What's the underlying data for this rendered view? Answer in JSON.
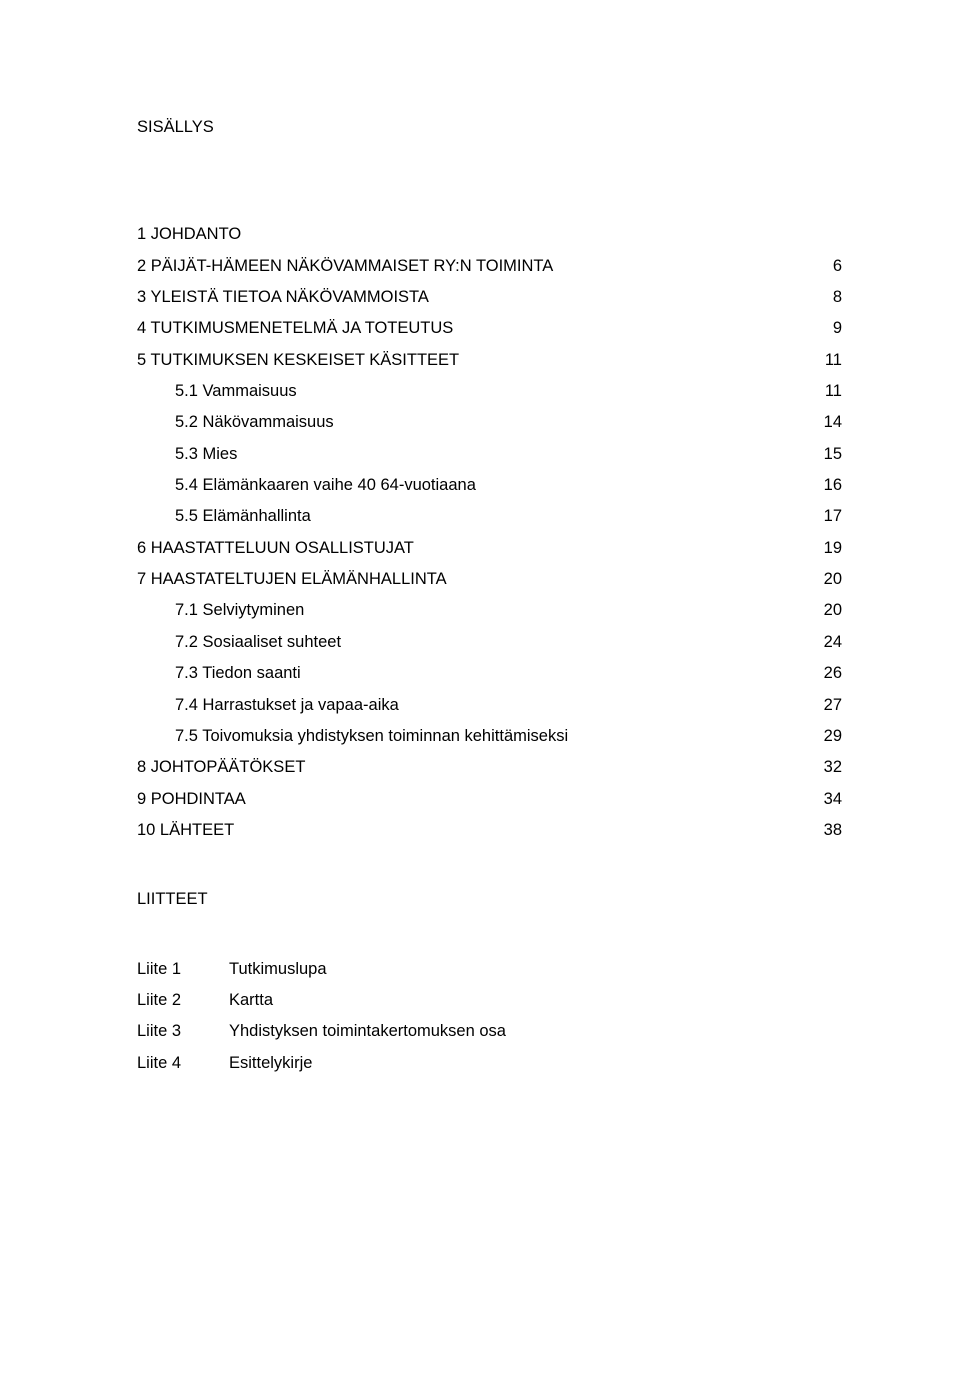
{
  "heading": "SISÄLLYS",
  "toc": [
    {
      "label": "1 JOHDANTO",
      "page": "",
      "indent": false
    },
    {
      "label": "2 PÄIJÄT-HÄMEEN NÄKÖVAMMAISET RY:N TOIMINTA",
      "page": "6",
      "indent": false
    },
    {
      "label": "3 YLEISTÄ TIETOA NÄKÖVAMMOISTA",
      "page": "8",
      "indent": false
    },
    {
      "label": "4 TUTKIMUSMENETELMÄ JA TOTEUTUS",
      "page": "9",
      "indent": false
    },
    {
      "label": "5 TUTKIMUKSEN KESKEISET KÄSITTEET",
      "page": "11",
      "indent": false
    },
    {
      "label": "5.1 Vammaisuus",
      "page": "11",
      "indent": true
    },
    {
      "label": "5.2 Näkövammaisuus",
      "page": "14",
      "indent": true
    },
    {
      "label": "5.3 Mies",
      "page": "15",
      "indent": true
    },
    {
      "label": "5.4 Elämänkaaren vaihe 40 64-vuotiaana",
      "page": "16",
      "indent": true
    },
    {
      "label": "5.5 Elämänhallinta",
      "page": "17",
      "indent": true
    },
    {
      "label": "6 HAASTATTELUUN OSALLISTUJAT",
      "page": "19",
      "indent": false
    },
    {
      "label": "7 HAASTATELTUJEN ELÄMÄNHALLINTA",
      "page": "20",
      "indent": false
    },
    {
      "label": "7.1 Selviytyminen",
      "page": "20",
      "indent": true
    },
    {
      "label": "7.2 Sosiaaliset suhteet",
      "page": "24",
      "indent": true
    },
    {
      "label": "7.3 Tiedon saanti",
      "page": "26",
      "indent": true
    },
    {
      "label": "7.4 Harrastukset ja vapaa-aika",
      "page": "27",
      "indent": true
    },
    {
      "label": "7.5 Toivomuksia yhdistyksen toiminnan kehittämiseksi",
      "page": "29",
      "indent": true
    },
    {
      "label": "8 JOHTOPÄÄTÖKSET",
      "page": "32",
      "indent": false
    },
    {
      "label": "9 POHDINTAA",
      "page": "34",
      "indent": false
    },
    {
      "label": "10 LÄHTEET",
      "page": "38",
      "indent": false
    }
  ],
  "attachments_title": "LIITTEET",
  "attachments": [
    {
      "key": "Liite 1",
      "value": "Tutkimuslupa"
    },
    {
      "key": "Liite 2",
      "value": "Kartta"
    },
    {
      "key": "Liite 3",
      "value": "Yhdistyksen toimintakertomuksen osa"
    },
    {
      "key": "Liite 4",
      "value": "Esittelykirje"
    }
  ]
}
